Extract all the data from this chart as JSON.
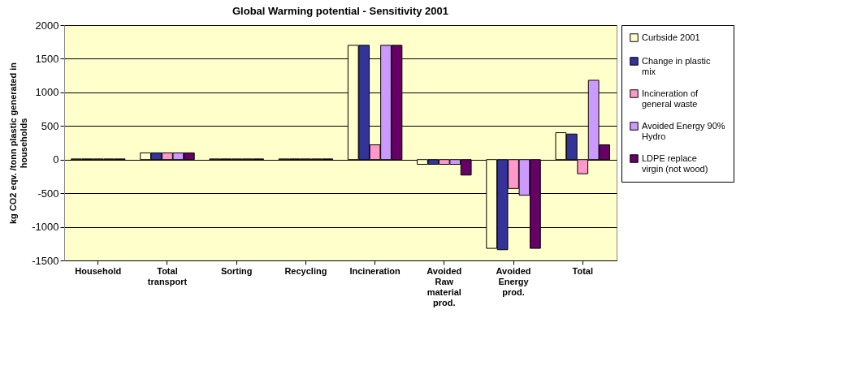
{
  "chart_data": {
    "type": "bar",
    "title": "Global Warming potential - Sensitivity 2001",
    "ylabel": "kg CO2 eqv. /tonn plastic generated in households",
    "categories": [
      "Household",
      "Total transport",
      "Sorting",
      "Recycling",
      "Incineration",
      "Avoided Raw material prod.",
      "Avoided Energy prod.",
      "Total"
    ],
    "series": [
      {
        "name": "Curbside 2001",
        "color": "#ffffcc",
        "values": [
          10,
          100,
          10,
          10,
          1700,
          -70,
          -1320,
          400
        ]
      },
      {
        "name": "Change in plastic mix",
        "color": "#333399",
        "values": [
          10,
          100,
          10,
          10,
          1700,
          -70,
          -1340,
          380
        ]
      },
      {
        "name": "Incineration of general waste",
        "color": "#ff99cc",
        "values": [
          10,
          100,
          10,
          10,
          220,
          -70,
          -430,
          -210
        ]
      },
      {
        "name": "Avoided Energy 90% Hydro",
        "color": "#cc99ff",
        "values": [
          10,
          100,
          10,
          10,
          1700,
          -70,
          -530,
          1180
        ]
      },
      {
        "name": "LDPE replace virgin (not wood)",
        "color": "#660066",
        "values": [
          10,
          100,
          10,
          10,
          1700,
          -230,
          -1320,
          220
        ]
      }
    ],
    "ylim": [
      -1500,
      2000
    ],
    "yticks": [
      -1500,
      -1000,
      -500,
      0,
      500,
      1000,
      1500,
      2000
    ],
    "grid": "y",
    "legend": "right"
  }
}
